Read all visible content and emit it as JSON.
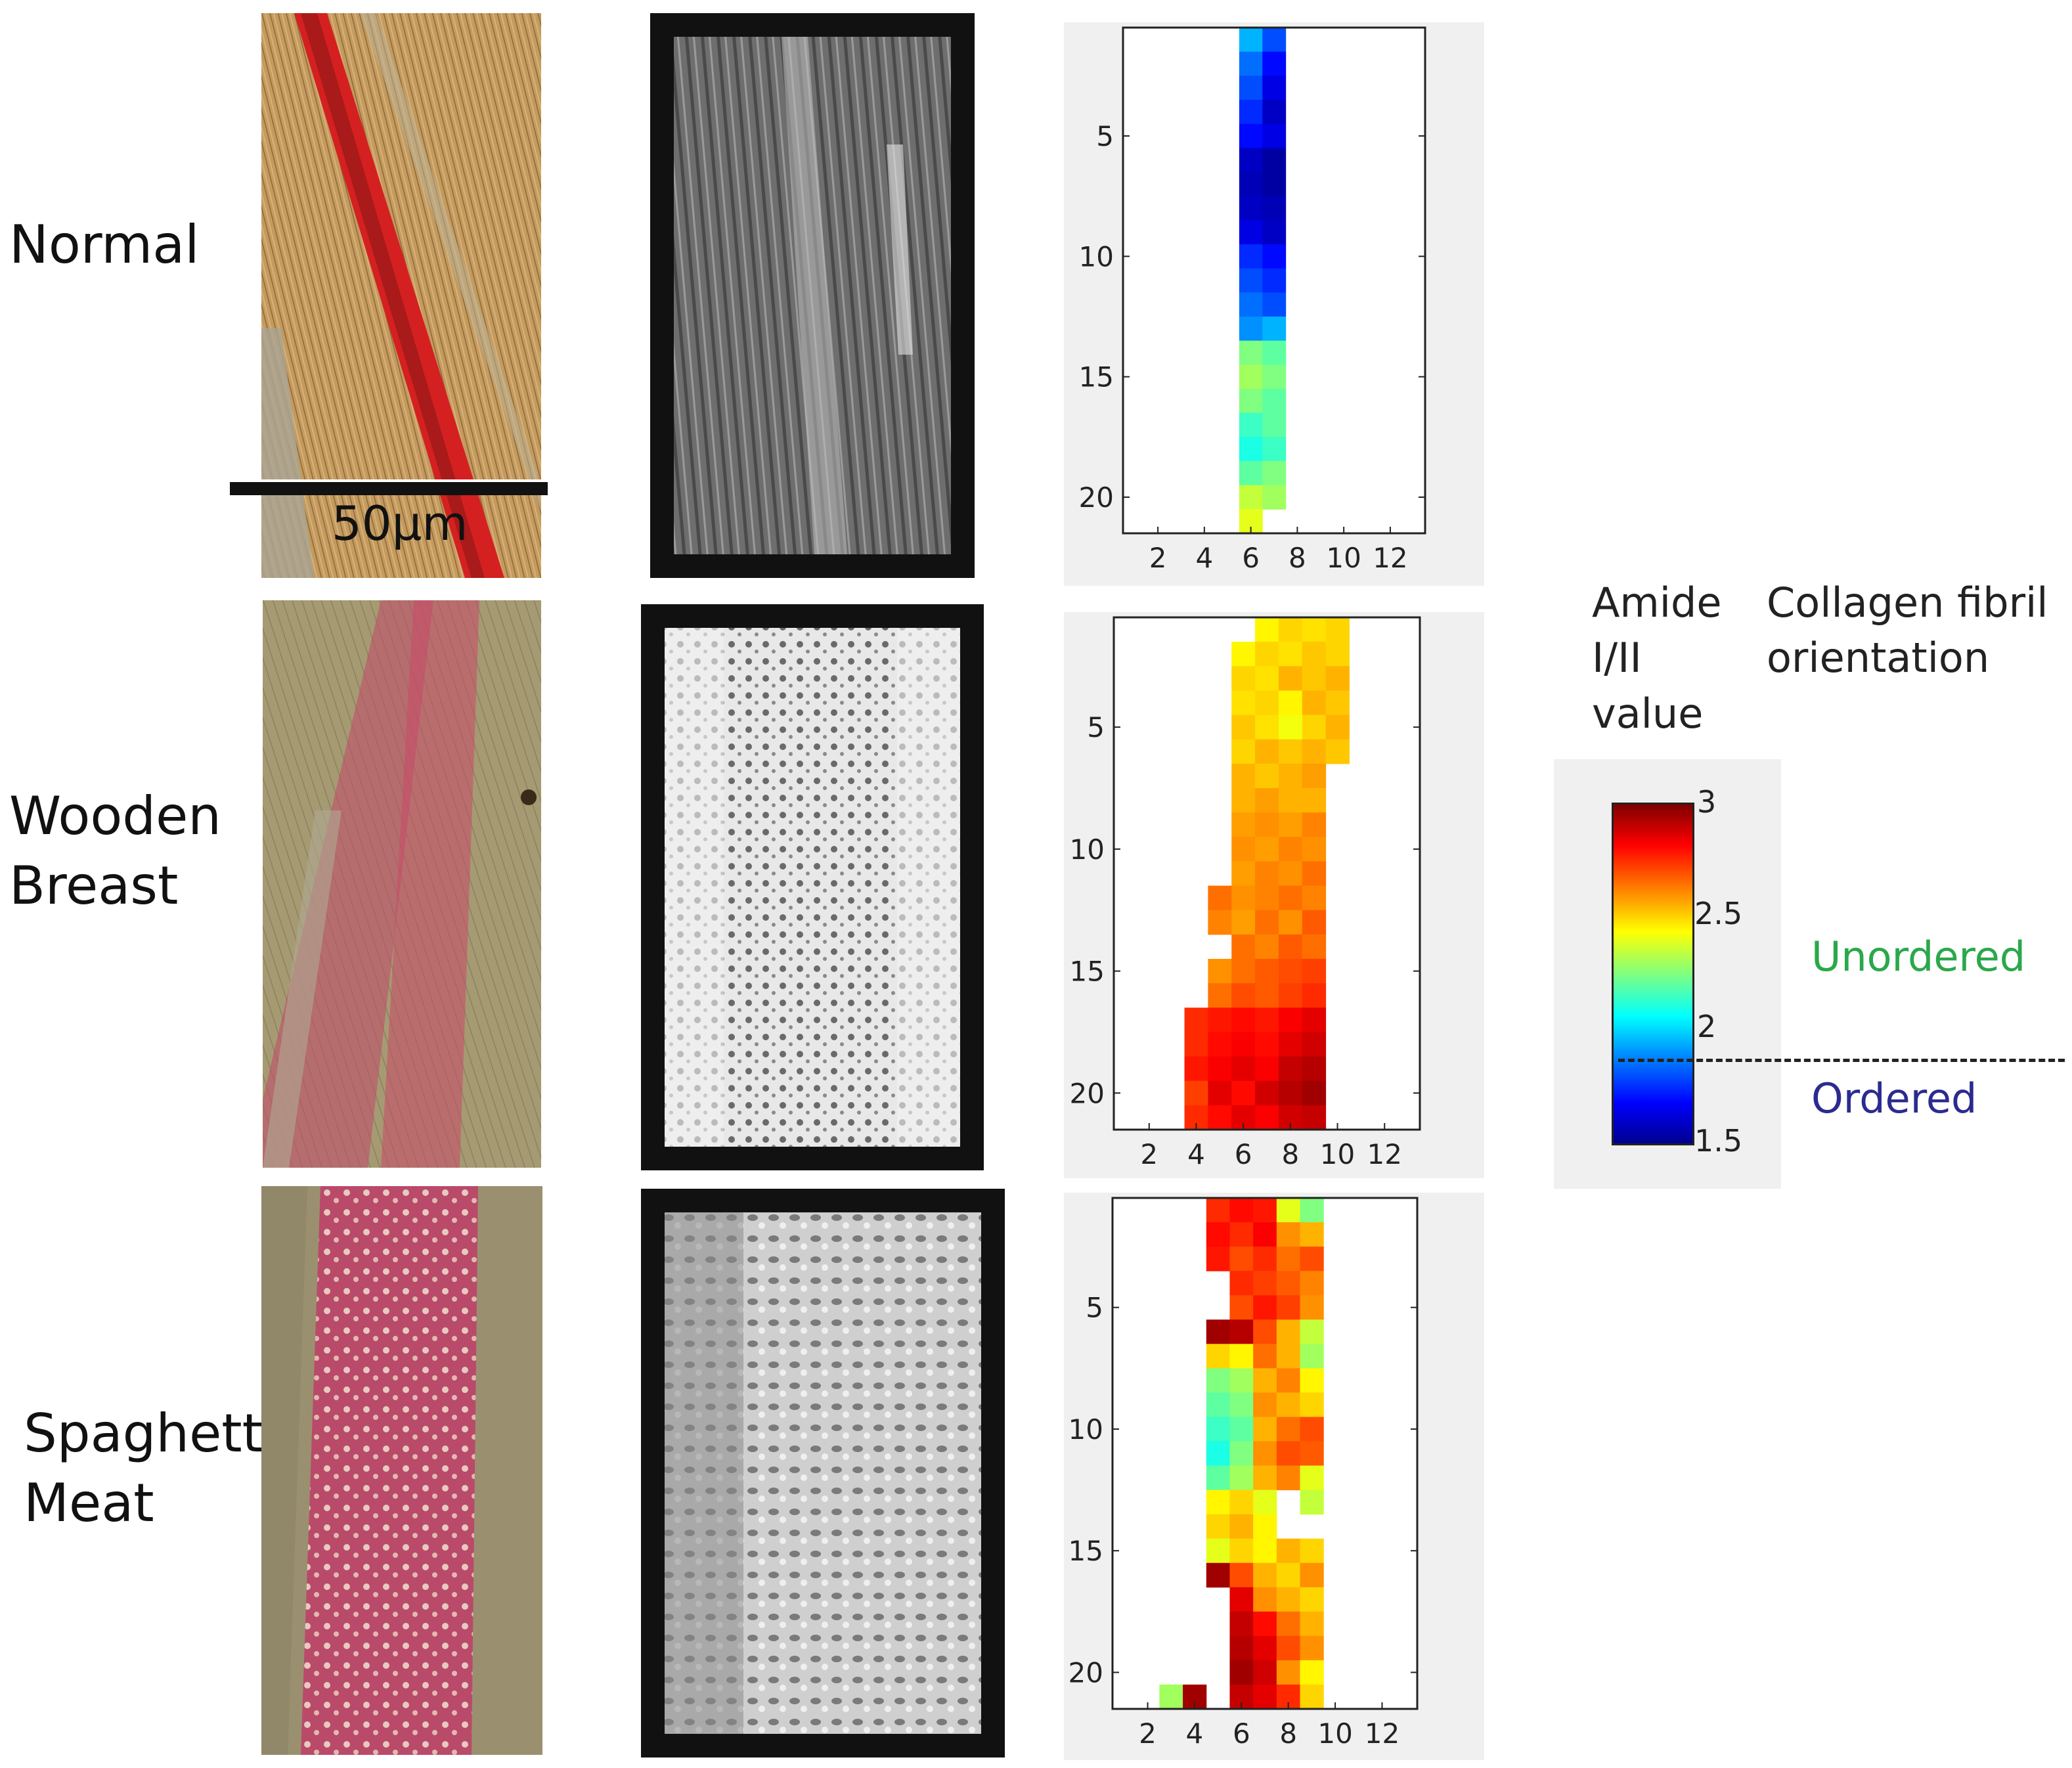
{
  "rows": [
    {
      "label": "Normal"
    },
    {
      "label": "Wooden\nBreast"
    },
    {
      "label": "Spaghetti\nMeat"
    }
  ],
  "scale_bar": {
    "label": "50µm"
  },
  "colorbar": {
    "title": "Amide\nI/II\nvalue",
    "ticks": [
      "3",
      "2.5",
      "2",
      "1.5"
    ],
    "range": [
      1.5,
      3
    ],
    "colormap": "jet"
  },
  "legend": {
    "title": "Collagen fibril\norientation",
    "unordered_label": "Unordered",
    "ordered_label": "Ordered",
    "unordered_color": "#2aa84a",
    "ordered_color": "#2b2b8f",
    "threshold": 1.85
  },
  "chart_data": [
    {
      "type": "heatmap",
      "name": "Normal",
      "x_ticks": [
        "2",
        "4",
        "6",
        "8",
        "10",
        "12"
      ],
      "y_ticks": [
        "5",
        "10",
        "15",
        "20"
      ],
      "xlim": [
        0.5,
        13.5
      ],
      "ylim": [
        0.5,
        21.5
      ],
      "colormap": "jet",
      "clim": [
        1.5,
        3
      ],
      "cells": [
        [
          1,
          6,
          1.95
        ],
        [
          1,
          7,
          1.8
        ],
        [
          2,
          6,
          1.85
        ],
        [
          2,
          7,
          1.7
        ],
        [
          3,
          6,
          1.8
        ],
        [
          3,
          7,
          1.65
        ],
        [
          4,
          6,
          1.75
        ],
        [
          4,
          7,
          1.6
        ],
        [
          5,
          6,
          1.7
        ],
        [
          5,
          7,
          1.65
        ],
        [
          6,
          6,
          1.6
        ],
        [
          6,
          7,
          1.55
        ],
        [
          7,
          6,
          1.58
        ],
        [
          7,
          7,
          1.55
        ],
        [
          8,
          6,
          1.6
        ],
        [
          8,
          7,
          1.58
        ],
        [
          9,
          6,
          1.65
        ],
        [
          9,
          7,
          1.6
        ],
        [
          10,
          6,
          1.75
        ],
        [
          10,
          7,
          1.7
        ],
        [
          11,
          6,
          1.8
        ],
        [
          11,
          7,
          1.75
        ],
        [
          12,
          6,
          1.85
        ],
        [
          12,
          7,
          1.8
        ],
        [
          13,
          6,
          1.9
        ],
        [
          13,
          7,
          1.95
        ],
        [
          14,
          6,
          2.25
        ],
        [
          14,
          7,
          2.2
        ],
        [
          15,
          6,
          2.3
        ],
        [
          15,
          7,
          2.25
        ],
        [
          16,
          6,
          2.25
        ],
        [
          16,
          7,
          2.2
        ],
        [
          17,
          6,
          2.15
        ],
        [
          17,
          7,
          2.2
        ],
        [
          18,
          6,
          2.1
        ],
        [
          18,
          7,
          2.15
        ],
        [
          19,
          6,
          2.2
        ],
        [
          19,
          7,
          2.25
        ],
        [
          20,
          6,
          2.35
        ],
        [
          20,
          7,
          2.3
        ],
        [
          21,
          6,
          2.4
        ]
      ]
    },
    {
      "type": "heatmap",
      "name": "Wooden Breast",
      "x_ticks": [
        "2",
        "4",
        "6",
        "8",
        "10",
        "12"
      ],
      "y_ticks": [
        "5",
        "10",
        "15",
        "20"
      ],
      "xlim": [
        0.5,
        13.5
      ],
      "ylim": [
        0.5,
        21.5
      ],
      "colormap": "jet",
      "clim": [
        1.5,
        3
      ],
      "cells": [
        [
          1,
          7,
          2.45
        ],
        [
          1,
          8,
          2.5
        ],
        [
          1,
          9,
          2.48
        ],
        [
          1,
          10,
          2.5
        ],
        [
          2,
          6,
          2.45
        ],
        [
          2,
          7,
          2.5
        ],
        [
          2,
          8,
          2.48
        ],
        [
          2,
          9,
          2.52
        ],
        [
          2,
          10,
          2.5
        ],
        [
          3,
          6,
          2.5
        ],
        [
          3,
          7,
          2.48
        ],
        [
          3,
          8,
          2.55
        ],
        [
          3,
          9,
          2.52
        ],
        [
          3,
          10,
          2.55
        ],
        [
          4,
          6,
          2.48
        ],
        [
          4,
          7,
          2.5
        ],
        [
          4,
          8,
          2.45
        ],
        [
          4,
          9,
          2.55
        ],
        [
          4,
          10,
          2.52
        ],
        [
          5,
          6,
          2.52
        ],
        [
          5,
          7,
          2.48
        ],
        [
          5,
          8,
          2.42
        ],
        [
          5,
          9,
          2.5
        ],
        [
          5,
          10,
          2.55
        ],
        [
          6,
          6,
          2.5
        ],
        [
          6,
          7,
          2.55
        ],
        [
          6,
          8,
          2.52
        ],
        [
          6,
          9,
          2.55
        ],
        [
          6,
          10,
          2.52
        ],
        [
          7,
          6,
          2.55
        ],
        [
          7,
          7,
          2.52
        ],
        [
          7,
          8,
          2.55
        ],
        [
          7,
          9,
          2.58
        ],
        [
          8,
          6,
          2.55
        ],
        [
          8,
          7,
          2.58
        ],
        [
          8,
          8,
          2.55
        ],
        [
          8,
          9,
          2.55
        ],
        [
          9,
          6,
          2.58
        ],
        [
          9,
          7,
          2.6
        ],
        [
          9,
          8,
          2.58
        ],
        [
          9,
          9,
          2.62
        ],
        [
          10,
          6,
          2.6
        ],
        [
          10,
          7,
          2.58
        ],
        [
          10,
          8,
          2.62
        ],
        [
          10,
          9,
          2.6
        ],
        [
          11,
          6,
          2.58
        ],
        [
          11,
          7,
          2.62
        ],
        [
          11,
          8,
          2.6
        ],
        [
          11,
          9,
          2.65
        ],
        [
          12,
          5,
          2.65
        ],
        [
          12,
          6,
          2.6
        ],
        [
          12,
          7,
          2.62
        ],
        [
          12,
          8,
          2.65
        ],
        [
          12,
          9,
          2.62
        ],
        [
          13,
          5,
          2.62
        ],
        [
          13,
          6,
          2.58
        ],
        [
          13,
          7,
          2.65
        ],
        [
          13,
          8,
          2.6
        ],
        [
          13,
          9,
          2.68
        ],
        [
          14,
          6,
          2.65
        ],
        [
          14,
          7,
          2.62
        ],
        [
          14,
          8,
          2.68
        ],
        [
          14,
          9,
          2.65
        ],
        [
          15,
          5,
          2.6
        ],
        [
          15,
          6,
          2.65
        ],
        [
          15,
          7,
          2.68
        ],
        [
          15,
          8,
          2.7
        ],
        [
          15,
          9,
          2.72
        ],
        [
          16,
          5,
          2.65
        ],
        [
          16,
          6,
          2.7
        ],
        [
          16,
          7,
          2.68
        ],
        [
          16,
          8,
          2.72
        ],
        [
          16,
          9,
          2.75
        ],
        [
          17,
          4,
          2.75
        ],
        [
          17,
          5,
          2.78
        ],
        [
          17,
          6,
          2.8
        ],
        [
          17,
          7,
          2.78
        ],
        [
          17,
          8,
          2.82
        ],
        [
          17,
          9,
          2.85
        ],
        [
          18,
          4,
          2.75
        ],
        [
          18,
          5,
          2.8
        ],
        [
          18,
          6,
          2.82
        ],
        [
          18,
          7,
          2.8
        ],
        [
          18,
          8,
          2.85
        ],
        [
          18,
          9,
          2.88
        ],
        [
          19,
          4,
          2.78
        ],
        [
          19,
          5,
          2.82
        ],
        [
          19,
          6,
          2.85
        ],
        [
          19,
          7,
          2.82
        ],
        [
          19,
          8,
          2.9
        ],
        [
          19,
          9,
          2.92
        ],
        [
          20,
          4,
          2.72
        ],
        [
          20,
          5,
          2.85
        ],
        [
          20,
          6,
          2.8
        ],
        [
          20,
          7,
          2.88
        ],
        [
          20,
          8,
          2.92
        ],
        [
          20,
          9,
          2.95
        ],
        [
          21,
          4,
          2.75
        ],
        [
          21,
          5,
          2.8
        ],
        [
          21,
          6,
          2.85
        ],
        [
          21,
          7,
          2.82
        ],
        [
          21,
          8,
          2.88
        ],
        [
          21,
          9,
          2.9
        ]
      ]
    },
    {
      "type": "heatmap",
      "name": "Spaghetti Meat",
      "x_ticks": [
        "2",
        "4",
        "6",
        "8",
        "10",
        "12"
      ],
      "y_ticks": [
        "5",
        "10",
        "15",
        "20"
      ],
      "xlim": [
        0.5,
        13.5
      ],
      "ylim": [
        0.5,
        21.5
      ],
      "colormap": "jet",
      "clim": [
        1.5,
        3
      ],
      "cells": [
        [
          1,
          5,
          2.75
        ],
        [
          1,
          6,
          2.8
        ],
        [
          1,
          7,
          2.78
        ],
        [
          1,
          8,
          2.4
        ],
        [
          1,
          9,
          2.25
        ],
        [
          2,
          5,
          2.8
        ],
        [
          2,
          6,
          2.75
        ],
        [
          2,
          7,
          2.82
        ],
        [
          2,
          8,
          2.6
        ],
        [
          2,
          9,
          2.55
        ],
        [
          3,
          5,
          2.78
        ],
        [
          3,
          6,
          2.7
        ],
        [
          3,
          7,
          2.75
        ],
        [
          3,
          8,
          2.65
        ],
        [
          3,
          9,
          2.7
        ],
        [
          4,
          6,
          2.75
        ],
        [
          4,
          7,
          2.72
        ],
        [
          4,
          8,
          2.68
        ],
        [
          4,
          9,
          2.62
        ],
        [
          5,
          6,
          2.7
        ],
        [
          5,
          7,
          2.78
        ],
        [
          5,
          8,
          2.72
        ],
        [
          5,
          9,
          2.6
        ],
        [
          6,
          5,
          2.95
        ],
        [
          6,
          6,
          2.92
        ],
        [
          6,
          7,
          2.7
        ],
        [
          6,
          8,
          2.55
        ],
        [
          6,
          9,
          2.35
        ],
        [
          7,
          5,
          2.5
        ],
        [
          7,
          6,
          2.45
        ],
        [
          7,
          7,
          2.65
        ],
        [
          7,
          8,
          2.55
        ],
        [
          7,
          9,
          2.3
        ],
        [
          8,
          5,
          2.25
        ],
        [
          8,
          6,
          2.3
        ],
        [
          8,
          7,
          2.55
        ],
        [
          8,
          8,
          2.62
        ],
        [
          8,
          9,
          2.45
        ],
        [
          9,
          5,
          2.2
        ],
        [
          9,
          6,
          2.25
        ],
        [
          9,
          7,
          2.6
        ],
        [
          9,
          8,
          2.55
        ],
        [
          9,
          9,
          2.5
        ],
        [
          10,
          5,
          2.15
        ],
        [
          10,
          6,
          2.2
        ],
        [
          10,
          7,
          2.55
        ],
        [
          10,
          8,
          2.65
        ],
        [
          10,
          9,
          2.7
        ],
        [
          11,
          5,
          2.1
        ],
        [
          11,
          6,
          2.25
        ],
        [
          11,
          7,
          2.6
        ],
        [
          11,
          8,
          2.7
        ],
        [
          11,
          9,
          2.68
        ],
        [
          12,
          5,
          2.2
        ],
        [
          12,
          6,
          2.3
        ],
        [
          12,
          7,
          2.55
        ],
        [
          12,
          8,
          2.62
        ],
        [
          12,
          9,
          2.4
        ],
        [
          13,
          5,
          2.45
        ],
        [
          13,
          6,
          2.5
        ],
        [
          13,
          7,
          2.4
        ],
        [
          13,
          9,
          2.35
        ],
        [
          14,
          5,
          2.5
        ],
        [
          14,
          6,
          2.55
        ],
        [
          14,
          7,
          2.45
        ],
        [
          15,
          5,
          2.4
        ],
        [
          15,
          6,
          2.5
        ],
        [
          15,
          7,
          2.45
        ],
        [
          15,
          8,
          2.55
        ],
        [
          15,
          9,
          2.5
        ],
        [
          16,
          5,
          2.95
        ],
        [
          16,
          6,
          2.7
        ],
        [
          16,
          7,
          2.55
        ],
        [
          16,
          8,
          2.5
        ],
        [
          16,
          9,
          2.6
        ],
        [
          17,
          6,
          2.85
        ],
        [
          17,
          7,
          2.6
        ],
        [
          17,
          8,
          2.55
        ],
        [
          17,
          9,
          2.5
        ],
        [
          18,
          6,
          2.9
        ],
        [
          18,
          7,
          2.8
        ],
        [
          18,
          8,
          2.65
        ],
        [
          18,
          9,
          2.55
        ],
        [
          19,
          6,
          2.92
        ],
        [
          19,
          7,
          2.85
        ],
        [
          19,
          8,
          2.7
        ],
        [
          19,
          9,
          2.6
        ],
        [
          20,
          6,
          2.95
        ],
        [
          20,
          7,
          2.88
        ],
        [
          20,
          8,
          2.6
        ],
        [
          20,
          9,
          2.45
        ],
        [
          21,
          3,
          2.3
        ],
        [
          21,
          4,
          2.95
        ],
        [
          21,
          6,
          2.9
        ],
        [
          21,
          7,
          2.85
        ],
        [
          21,
          8,
          2.75
        ],
        [
          21,
          9,
          2.5
        ]
      ]
    }
  ]
}
